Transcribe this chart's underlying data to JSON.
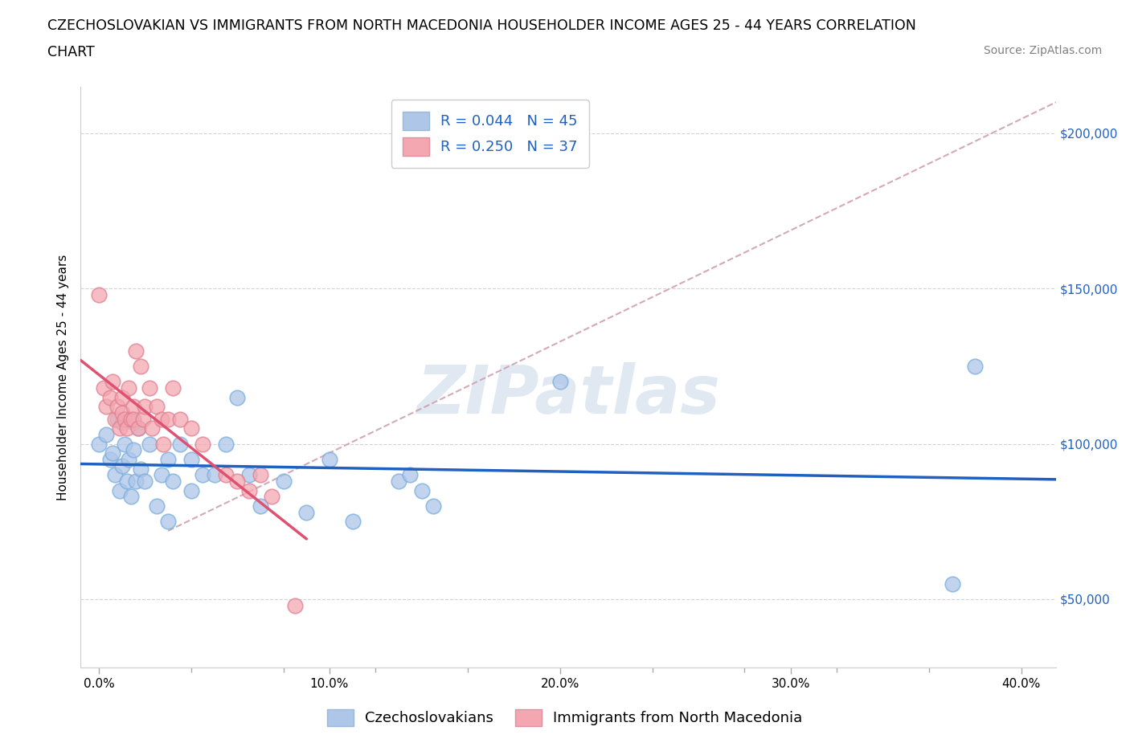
{
  "title_line1": "CZECHOSLOVAKIAN VS IMMIGRANTS FROM NORTH MACEDONIA HOUSEHOLDER INCOME AGES 25 - 44 YEARS CORRELATION",
  "title_line2": "CHART",
  "source_text": "Source: ZipAtlas.com",
  "ylabel": "Householder Income Ages 25 - 44 years",
  "watermark": "ZIPatlas",
  "legend_r1": "R = 0.044   N = 45",
  "legend_r2": "R = 0.250   N = 37",
  "czechoslovakian_color": "#aec6e8",
  "macedonia_color": "#f4a7b0",
  "trend_blue_color": "#2060c0",
  "trend_pink_color": "#e05070",
  "trend_gray_color": "#d0a0b0",
  "xlabel_ticks": [
    "0.0%",
    "",
    "",
    "",
    "10.0%",
    "",
    "",
    "",
    "",
    "",
    "20.0%",
    "",
    "",
    "",
    "",
    "",
    "30.0%",
    "",
    "",
    "",
    "40.0%"
  ],
  "xtick_major_vals": [
    0.0,
    0.1,
    0.2,
    0.3,
    0.4
  ],
  "xtick_major_labels": [
    "0.0%",
    "10.0%",
    "20.0%",
    "30.0%",
    "40.0%"
  ],
  "xtick_minor_vals": [
    0.04,
    0.08,
    0.12,
    0.16,
    0.24,
    0.28,
    0.32,
    0.36
  ],
  "ylabel_ticks": [
    "$50,000",
    "$100,000",
    "$150,000",
    "$200,000"
  ],
  "ylabel_tick_vals": [
    50000,
    100000,
    150000,
    200000
  ],
  "xlim": [
    -0.008,
    0.415
  ],
  "ylim": [
    28000,
    215000
  ],
  "czech_x": [
    0.0,
    0.003,
    0.005,
    0.006,
    0.007,
    0.008,
    0.009,
    0.01,
    0.01,
    0.011,
    0.012,
    0.013,
    0.014,
    0.015,
    0.015,
    0.016,
    0.017,
    0.018,
    0.02,
    0.022,
    0.025,
    0.027,
    0.03,
    0.03,
    0.032,
    0.035,
    0.04,
    0.04,
    0.045,
    0.05,
    0.055,
    0.06,
    0.065,
    0.07,
    0.08,
    0.09,
    0.1,
    0.11,
    0.13,
    0.135,
    0.14,
    0.145,
    0.2,
    0.37,
    0.38
  ],
  "czech_y": [
    100000,
    103000,
    95000,
    97000,
    90000,
    108000,
    85000,
    93000,
    107000,
    100000,
    88000,
    95000,
    83000,
    98000,
    107000,
    88000,
    105000,
    92000,
    88000,
    100000,
    80000,
    90000,
    95000,
    75000,
    88000,
    100000,
    85000,
    95000,
    90000,
    90000,
    100000,
    115000,
    90000,
    80000,
    88000,
    78000,
    95000,
    75000,
    88000,
    90000,
    85000,
    80000,
    120000,
    55000,
    125000
  ],
  "mac_x": [
    0.0,
    0.002,
    0.003,
    0.005,
    0.006,
    0.007,
    0.008,
    0.009,
    0.01,
    0.01,
    0.011,
    0.012,
    0.013,
    0.014,
    0.015,
    0.015,
    0.016,
    0.017,
    0.018,
    0.019,
    0.02,
    0.022,
    0.023,
    0.025,
    0.027,
    0.028,
    0.03,
    0.032,
    0.035,
    0.04,
    0.045,
    0.055,
    0.06,
    0.065,
    0.07,
    0.075,
    0.085
  ],
  "mac_y": [
    148000,
    118000,
    112000,
    115000,
    120000,
    108000,
    112000,
    105000,
    115000,
    110000,
    108000,
    105000,
    118000,
    108000,
    112000,
    108000,
    130000,
    105000,
    125000,
    108000,
    112000,
    118000,
    105000,
    112000,
    108000,
    100000,
    108000,
    118000,
    108000,
    105000,
    100000,
    90000,
    88000,
    85000,
    90000,
    83000,
    48000
  ],
  "title_fontsize": 12.5,
  "axis_label_fontsize": 11,
  "tick_fontsize": 11,
  "legend_fontsize": 13,
  "source_fontsize": 10
}
